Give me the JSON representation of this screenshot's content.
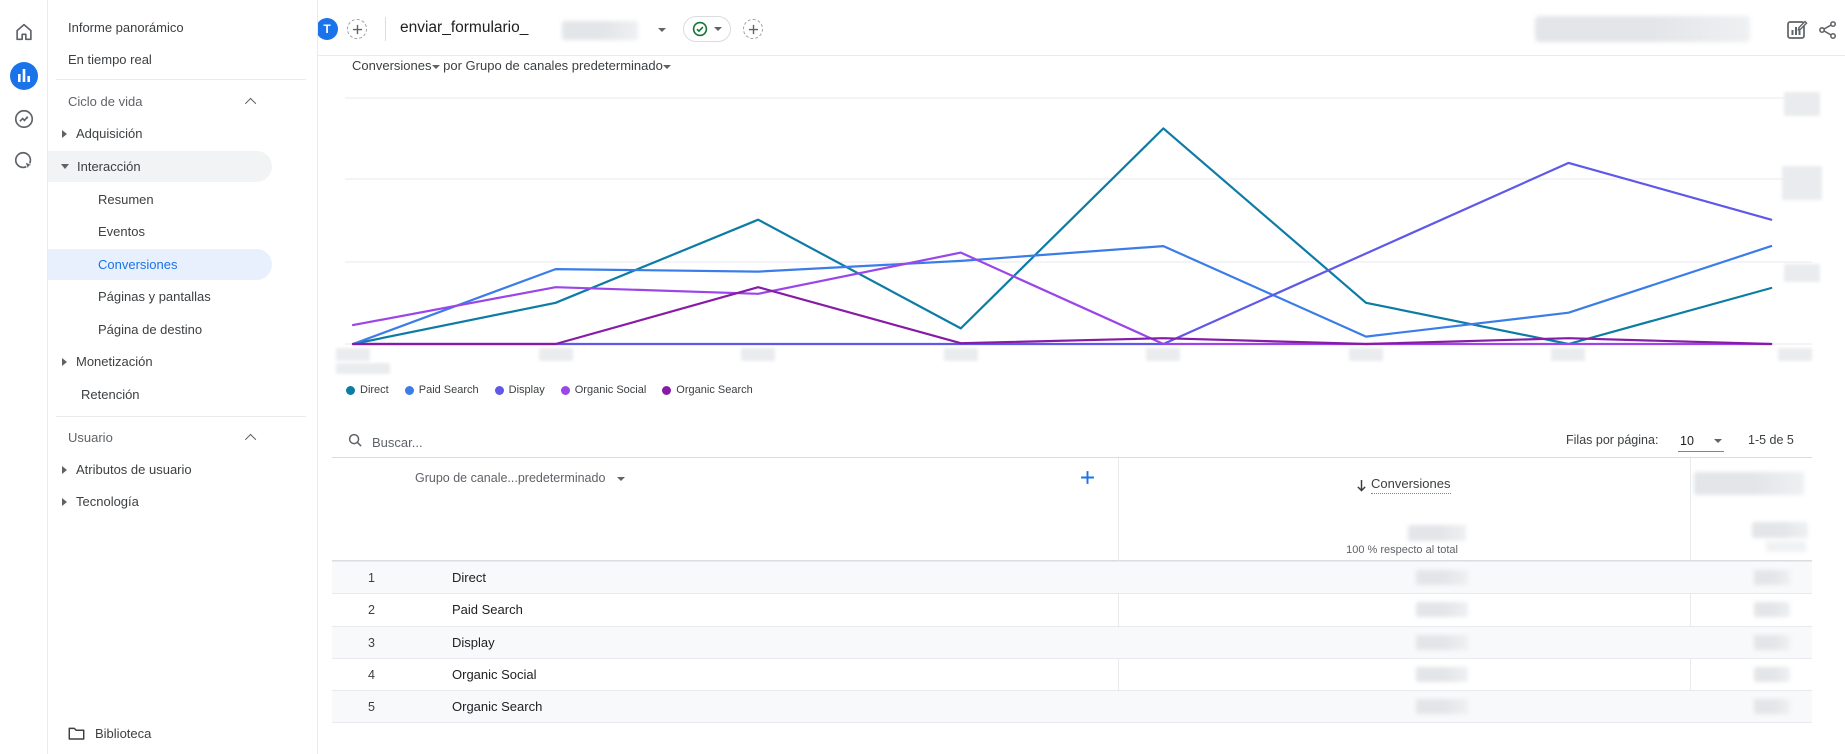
{
  "colors": {
    "accent": "#1a73e8",
    "selected_item_bg": "#e8f0fe",
    "hover_item_bg": "#f1f3f4",
    "green_check": "#137333",
    "gridline": "#e8eaed"
  },
  "rail": {
    "icons": [
      "home-icon",
      "reports-icon",
      "explore-icon",
      "advertising-icon"
    ],
    "selected": "reports-icon"
  },
  "sidebar": {
    "items": [
      {
        "label": "Informe panorámico"
      },
      {
        "label": "En tiempo real"
      },
      {
        "label": "Ciclo de vida"
      },
      {
        "label": "Adquisición"
      },
      {
        "label": "Interacción"
      },
      {
        "label": "Resumen"
      },
      {
        "label": "Eventos"
      },
      {
        "label": "Conversiones"
      },
      {
        "label": "Páginas y pantallas"
      },
      {
        "label": "Página de destino"
      },
      {
        "label": "Monetización"
      },
      {
        "label": "Retención"
      },
      {
        "label": "Usuario"
      },
      {
        "label": "Atributos de usuario"
      },
      {
        "label": "Tecnología"
      },
      {
        "label": "Biblioteca"
      }
    ],
    "selected_item": "Conversiones",
    "expanded_section": "Interacción"
  },
  "topbar": {
    "avatar_initial": "T",
    "report_title": "enviar_formulario_",
    "title_suffix_redacted": true,
    "status_icon": "green-check-circle",
    "date_range_redacted": true
  },
  "chart_header": {
    "metric": "Conversiones",
    "connector": "por",
    "dimension": "Grupo de canales predeterminado"
  },
  "chart_data": {
    "type": "line",
    "title": "Conversiones por Grupo de canales predeterminado",
    "x": [
      1,
      2,
      3,
      4,
      5,
      6,
      7,
      8
    ],
    "x_tick_labels": "redacted",
    "y_axis_labels": "redacted",
    "y_unit_note": "values estimated in gridline units; axis labels blurred in screenshot",
    "ylim": [
      0,
      3.2
    ],
    "grid": true,
    "legend_position": "bottom-left",
    "series": [
      {
        "name": "Direct",
        "color": "#0d7ca5",
        "values": [
          0,
          0.5,
          1.51,
          0.19,
          2.62,
          0.5,
          0,
          0.68
        ]
      },
      {
        "name": "Paid Search",
        "color": "#3b7de8",
        "values": [
          0,
          0.91,
          0.88,
          1.01,
          1.19,
          0.09,
          0.38,
          1.19
        ]
      },
      {
        "name": "Display",
        "color": "#5f58e8",
        "values": [
          0,
          0,
          0,
          0,
          0,
          1.1,
          2.2,
          1.51
        ]
      },
      {
        "name": "Organic Social",
        "color": "#9a46e8",
        "values": [
          0.23,
          0.69,
          0.61,
          1.11,
          0,
          0,
          0,
          0
        ]
      },
      {
        "name": "Organic Search",
        "color": "#871ba6",
        "values": [
          0,
          0,
          0.69,
          0.01,
          0.07,
          0,
          0.07,
          0
        ]
      }
    ]
  },
  "table": {
    "search_placeholder": "Buscar...",
    "rows_per_page_label": "Filas por página:",
    "rows_per_page_value": "10",
    "pagination_range": "1-5 de 5",
    "dimension_header": "Grupo de canale...predeterminado",
    "metric_header": "Conversiones",
    "sort_direction": "descending",
    "totals_caption": "100 % respecto al total",
    "metric_values_redacted": true,
    "second_metric_column_redacted": true,
    "rows": [
      {
        "index": "1",
        "channel": "Direct"
      },
      {
        "index": "2",
        "channel": "Paid Search"
      },
      {
        "index": "3",
        "channel": "Display"
      },
      {
        "index": "4",
        "channel": "Organic Social"
      },
      {
        "index": "5",
        "channel": "Organic Search"
      }
    ]
  }
}
